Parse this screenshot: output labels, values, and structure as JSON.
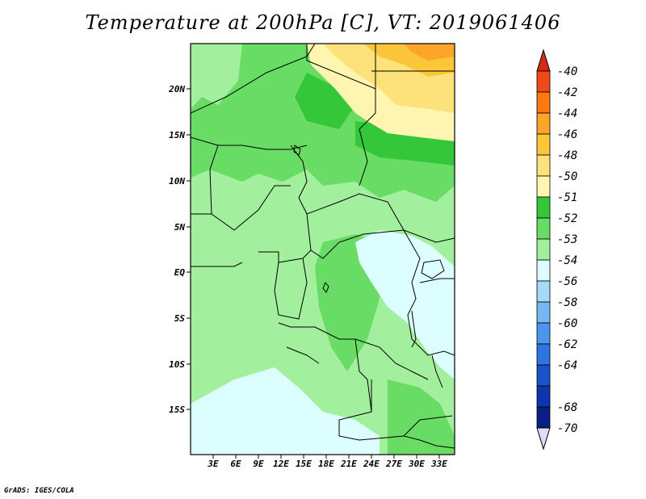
{
  "title": "Temperature at 200hPa [C], VT: 2019061406",
  "credit": "GrADS: IGES/COLA",
  "chart_data": {
    "type": "heatmap",
    "variable": "Temperature",
    "level": "200hPa",
    "units": "C",
    "valid_time": "2019061406",
    "lon_range": [
      0,
      35
    ],
    "lat_range": [
      -20,
      25
    ],
    "x_ticks": [
      "3E",
      "6E",
      "9E",
      "12E",
      "15E",
      "18E",
      "21E",
      "24E",
      "27E",
      "30E",
      "33E"
    ],
    "x_tick_values": [
      3,
      6,
      9,
      12,
      15,
      18,
      21,
      24,
      27,
      30,
      33
    ],
    "y_ticks": [
      "20N",
      "15N",
      "10N",
      "5N",
      "EQ",
      "5S",
      "10S",
      "15S"
    ],
    "y_tick_values": [
      20,
      15,
      10,
      5,
      0,
      -5,
      -10,
      -15
    ],
    "colorbar": {
      "labels": [
        "-40",
        "-42",
        "-44",
        "-46",
        "-48",
        "-50",
        "-51",
        "-52",
        "-53",
        "-54",
        "-56",
        "-58",
        "-60",
        "-62",
        "-64",
        "-68",
        "-70"
      ],
      "colors": [
        "#d62a14",
        "#ef4a17",
        "#fc7a11",
        "#fda42a",
        "#fcc63a",
        "#fde17a",
        "#fef6b0",
        "#34c73a",
        "#69dc65",
        "#a2ef9d",
        "#dcfeff",
        "#a6d8f8",
        "#76b7f2",
        "#4b95ec",
        "#2f75df",
        "#1853c8",
        "#0e36aa",
        "#0a1f83",
        "#e2dcf7"
      ]
    },
    "regions": [
      {
        "name": "background",
        "value": "-53 to -52",
        "color": "#a2ef9d"
      },
      {
        "name": "north-central-band",
        "value": "-52 to -51",
        "color": "#69dc65"
      },
      {
        "name": "northeast-warm",
        "value": "-51 to -48",
        "color": "#fde17a"
      },
      {
        "name": "northeast-peak",
        "value": "-48 to -46",
        "color": "#fcc63a"
      },
      {
        "name": "eastern-cold-lobe",
        "value": "-54 to -56",
        "color": "#dcfeff"
      },
      {
        "name": "southwest-cold",
        "value": "-54 to -56",
        "color": "#dcfeff"
      }
    ]
  }
}
